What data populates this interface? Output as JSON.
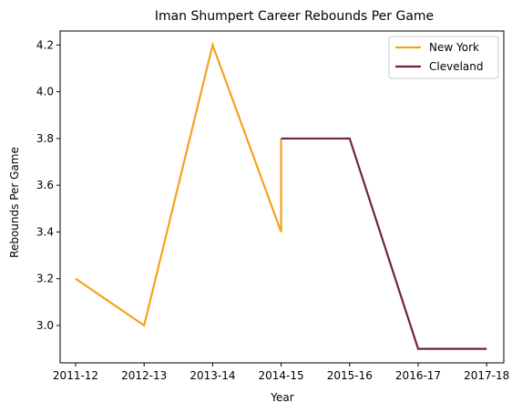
{
  "chart_data": {
    "type": "line",
    "title": "Iman Shumpert Career Rebounds Per Game",
    "xlabel": "Year",
    "ylabel": "Rebounds Per Game",
    "categories": [
      "2011-12",
      "2012-13",
      "2013-14",
      "2014-15",
      "2015-16",
      "2016-17",
      "2017-18"
    ],
    "ylim": [
      2.84,
      4.26
    ],
    "yticks": [
      3.0,
      3.2,
      3.4,
      3.6,
      3.8,
      4.0,
      4.2
    ],
    "ytick_labels": [
      "3.0",
      "3.2",
      "3.4",
      "3.6",
      "3.8",
      "4.0",
      "4.2"
    ],
    "grid": false,
    "legend_position": "top-right",
    "series": [
      {
        "name": "New York",
        "color": "#f5a21c",
        "points": [
          {
            "x": "2011-12",
            "y": 3.2
          },
          {
            "x": "2012-13",
            "y": 3.0
          },
          {
            "x": "2013-14",
            "y": 4.2
          },
          {
            "x": "2014-15",
            "y": 3.4
          },
          {
            "x": "2014-15",
            "y": 3.8
          }
        ]
      },
      {
        "name": "Cleveland",
        "color": "#6e2340",
        "points": [
          {
            "x": "2014-15",
            "y": 3.8
          },
          {
            "x": "2015-16",
            "y": 3.8
          },
          {
            "x": "2016-17",
            "y": 2.9
          },
          {
            "x": "2017-18",
            "y": 2.9
          }
        ]
      }
    ]
  }
}
